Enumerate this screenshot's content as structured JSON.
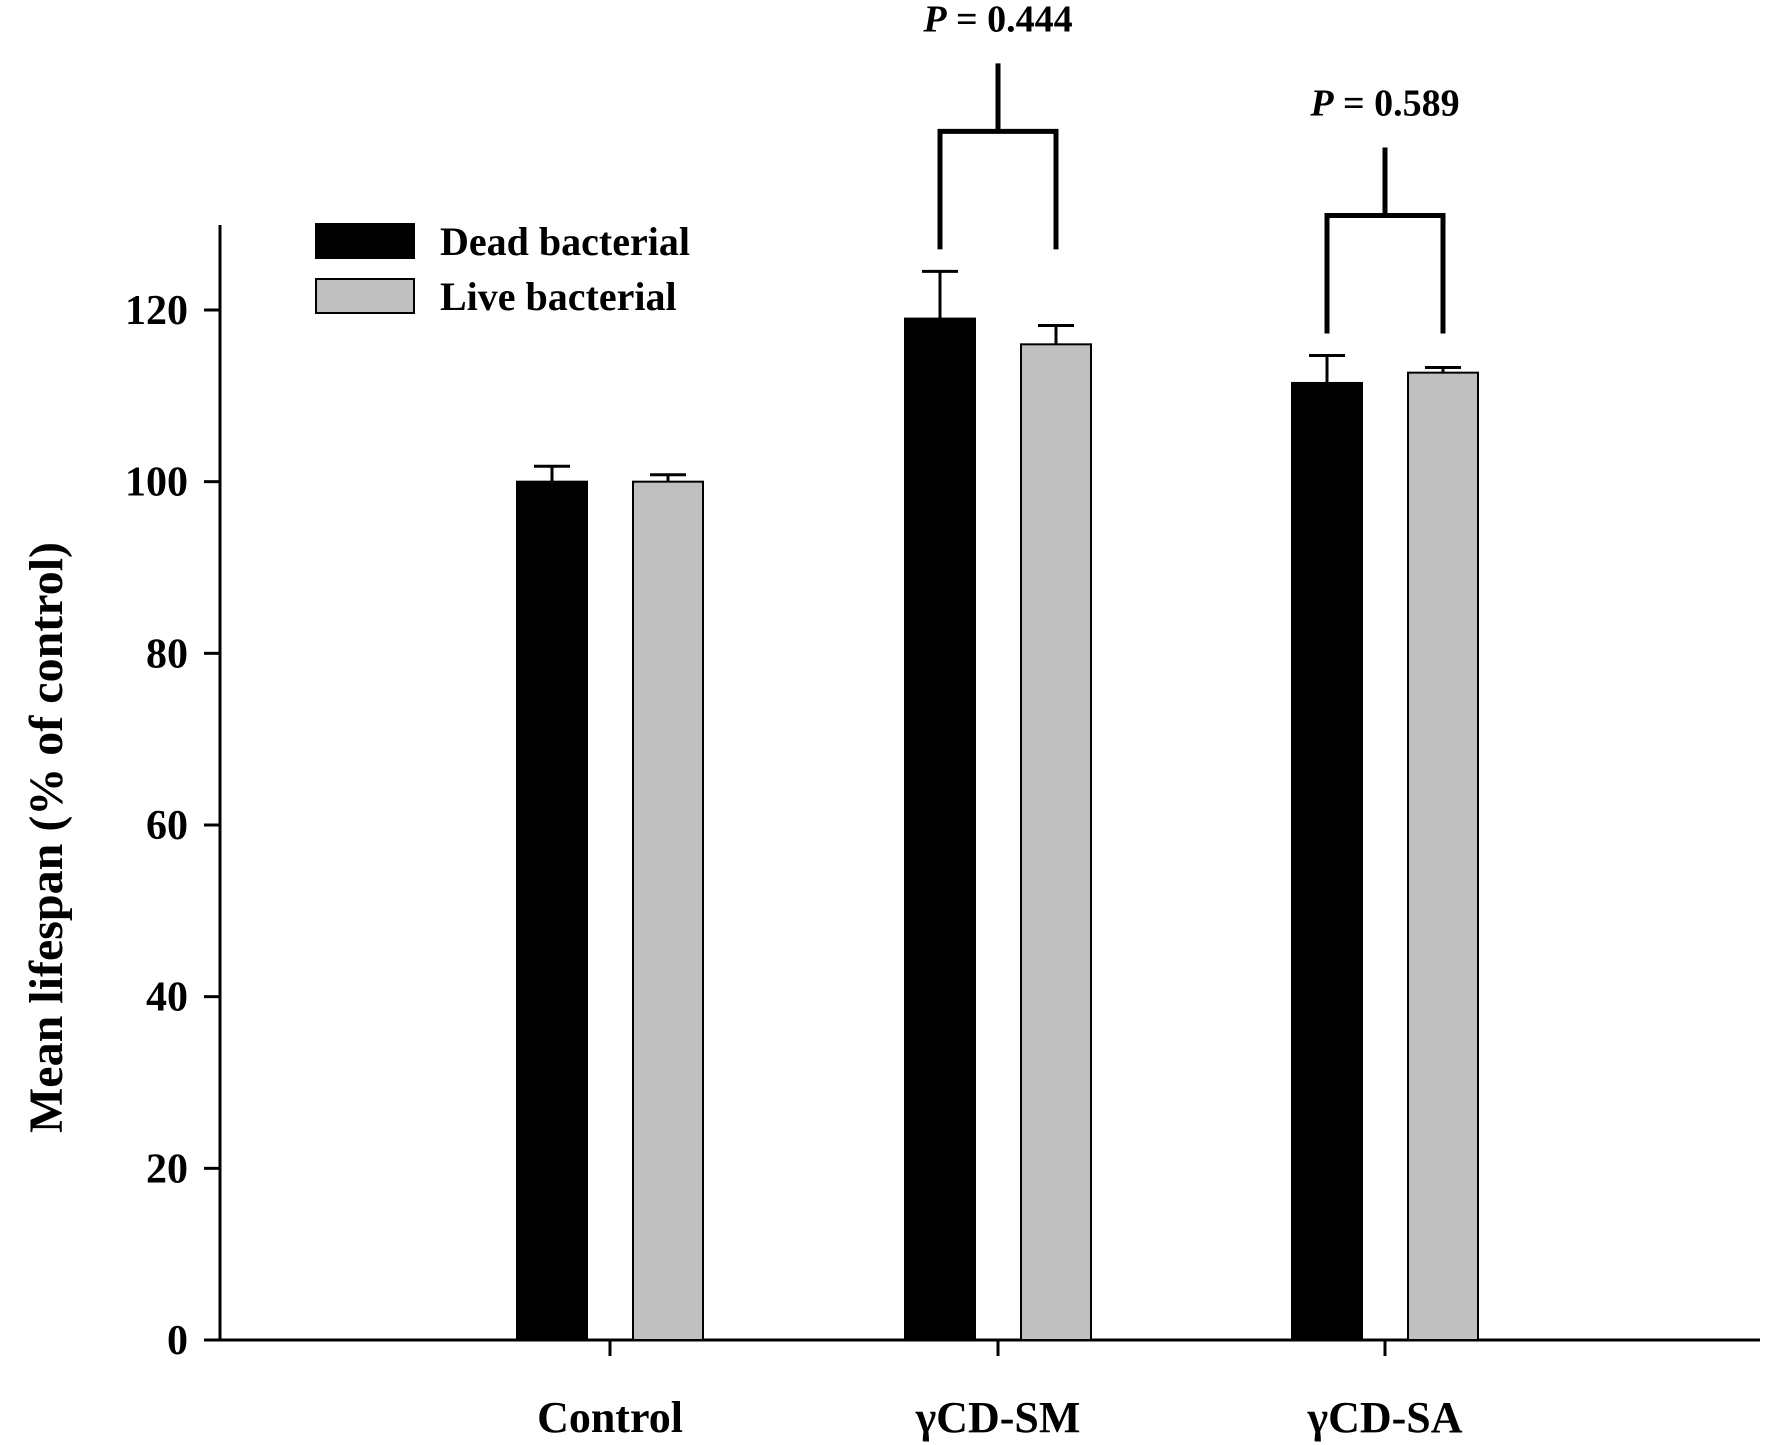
{
  "chart_data": {
    "type": "bar",
    "title": "",
    "xlabel": "",
    "ylabel": "Mean lifespan (% of control)",
    "ylim": [
      0,
      130
    ],
    "yticks": [
      "0",
      "20",
      "40",
      "60",
      "80",
      "100",
      "120"
    ],
    "grid": false,
    "legend_position": "top-left",
    "categories": [
      "Control",
      "γCD-SM",
      "γCD-SA"
    ],
    "series": [
      {
        "name": "Dead bacterial",
        "color": "#000000",
        "values": [
          100,
          119,
          111.5
        ],
        "errors": [
          1.8,
          5.5,
          3.2
        ]
      },
      {
        "name": "Live bacterial",
        "color": "#c0c0c0",
        "values": [
          100,
          116,
          112.7
        ],
        "errors": [
          0.8,
          2.2,
          0.6
        ]
      }
    ],
    "annotations": [
      {
        "category": "γCD-SM",
        "prefix": "P",
        "text": " = 0.444"
      },
      {
        "category": "γCD-SA",
        "prefix": "P",
        "text": " = 0.589"
      }
    ]
  }
}
